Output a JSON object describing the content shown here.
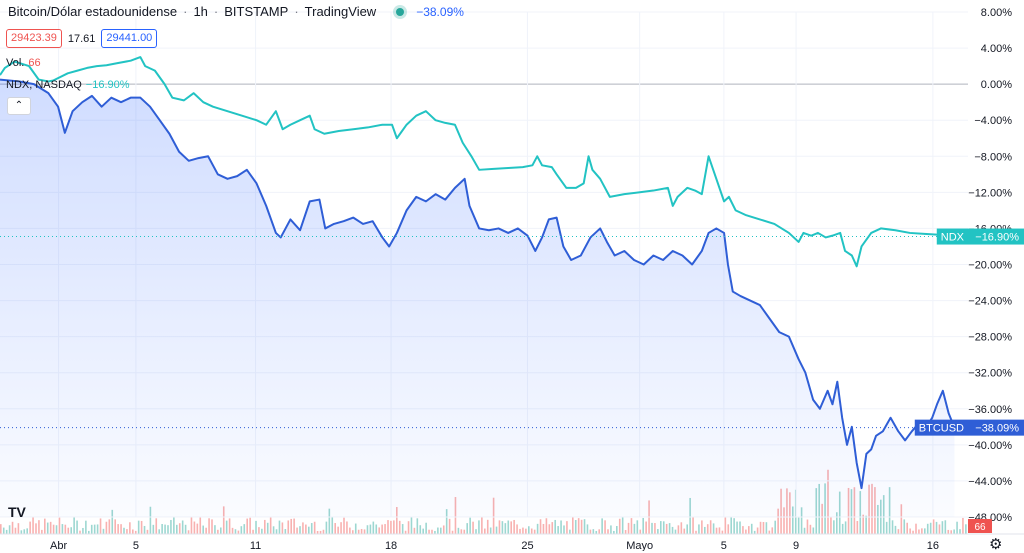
{
  "header": {
    "symbol": "Bitcoin/Dólar estadounidense",
    "interval": "1h",
    "exchange": "BITSTAMP",
    "source": "TradingView",
    "change": "−38.09%",
    "live_color": "#26a69a"
  },
  "quotes": {
    "sell": "29423.39",
    "spread": "17.61",
    "buy": "29441.00"
  },
  "volume": {
    "label": "Vol.",
    "value": "66"
  },
  "compare": {
    "label": "NDX, NASDAQ",
    "value": "−16.90%"
  },
  "controls": {
    "collapse_icon": "chevron-up-icon",
    "settings_icon": "gear-icon"
  },
  "chart_data": {
    "type": "line",
    "y_unit": "%",
    "ylim": [
      -48,
      8
    ],
    "yticks": [
      8,
      4,
      0,
      -4,
      -8,
      -12,
      -16,
      -20,
      -24,
      -28,
      -32,
      -36,
      -40,
      -44,
      -48
    ],
    "ytick_labels": [
      "8.00%",
      "4.00%",
      "0.00%",
      "−4.00%",
      "−8.00%",
      "−12.00%",
      "−16.00%",
      "−20.00%",
      "−24.00%",
      "−28.00%",
      "−32.00%",
      "−36.00%",
      "−40.00%",
      "−44.00%",
      "−48.00%"
    ],
    "x_domain": [
      0,
      1
    ],
    "xticks": [
      {
        "x": 0.0605,
        "label": "Abr"
      },
      {
        "x": 0.1404,
        "label": "5"
      },
      {
        "x": 0.264,
        "label": "11"
      },
      {
        "x": 0.404,
        "label": "18"
      },
      {
        "x": 0.5449,
        "label": "25"
      },
      {
        "x": 0.6608,
        "label": "Mayo"
      },
      {
        "x": 0.7478,
        "label": "5"
      },
      {
        "x": 0.8224,
        "label": "9"
      },
      {
        "x": 0.9637,
        "label": "16"
      }
    ],
    "series": [
      {
        "name": "BTCUSD",
        "color": "#2f5ed6",
        "label": "BTCUSD",
        "last_label": "−38.09%",
        "last_value": -38.09,
        "area": true,
        "points": [
          [
            0.0,
            0.5
          ],
          [
            0.02,
            0.3
          ],
          [
            0.035,
            0.0
          ],
          [
            0.05,
            -1.0
          ],
          [
            0.06,
            -2.5
          ],
          [
            0.067,
            -5.4
          ],
          [
            0.075,
            -3.0
          ],
          [
            0.085,
            -2.0
          ],
          [
            0.095,
            -1.3
          ],
          [
            0.105,
            -2.5
          ],
          [
            0.115,
            -1.5
          ],
          [
            0.125,
            -2.0
          ],
          [
            0.135,
            -1.5
          ],
          [
            0.145,
            -1.5
          ],
          [
            0.155,
            -2.5
          ],
          [
            0.165,
            -4.0
          ],
          [
            0.175,
            -5.5
          ],
          [
            0.185,
            -7.5
          ],
          [
            0.195,
            -8.5
          ],
          [
            0.205,
            -8.2
          ],
          [
            0.215,
            -8.0
          ],
          [
            0.225,
            -10.0
          ],
          [
            0.235,
            -10.5
          ],
          [
            0.245,
            -10.2
          ],
          [
            0.255,
            -9.5
          ],
          [
            0.265,
            -11.0
          ],
          [
            0.275,
            -13.5
          ],
          [
            0.285,
            -16.5
          ],
          [
            0.29,
            -17.0
          ],
          [
            0.3,
            -15.0
          ],
          [
            0.31,
            -16.2
          ],
          [
            0.32,
            -13.0
          ],
          [
            0.33,
            -12.8
          ],
          [
            0.336,
            -16.0
          ],
          [
            0.345,
            -15.5
          ],
          [
            0.355,
            -15.2
          ],
          [
            0.365,
            -14.8
          ],
          [
            0.375,
            -15.5
          ],
          [
            0.385,
            -15.2
          ],
          [
            0.395,
            -17.0
          ],
          [
            0.402,
            -18.0
          ],
          [
            0.41,
            -16.5
          ],
          [
            0.42,
            -14.0
          ],
          [
            0.43,
            -12.5
          ],
          [
            0.44,
            -13.0
          ],
          [
            0.45,
            -12.2
          ],
          [
            0.46,
            -12.8
          ],
          [
            0.47,
            -11.5
          ],
          [
            0.48,
            -10.5
          ],
          [
            0.485,
            -13.5
          ],
          [
            0.495,
            -16.0
          ],
          [
            0.505,
            -16.2
          ],
          [
            0.515,
            -16.0
          ],
          [
            0.525,
            -16.5
          ],
          [
            0.535,
            -16.0
          ],
          [
            0.545,
            -16.8
          ],
          [
            0.553,
            -18.5
          ],
          [
            0.56,
            -17.0
          ],
          [
            0.567,
            -15.0
          ],
          [
            0.575,
            -14.8
          ],
          [
            0.582,
            -18.0
          ],
          [
            0.59,
            -19.5
          ],
          [
            0.6,
            -19.0
          ],
          [
            0.61,
            -17.0
          ],
          [
            0.62,
            -16.0
          ],
          [
            0.627,
            -17.5
          ],
          [
            0.635,
            -19.0
          ],
          [
            0.645,
            -18.5
          ],
          [
            0.655,
            -19.5
          ],
          [
            0.665,
            -20.0
          ],
          [
            0.675,
            -19.0
          ],
          [
            0.685,
            -19.5
          ],
          [
            0.695,
            -18.5
          ],
          [
            0.705,
            -19.0
          ],
          [
            0.715,
            -20.0
          ],
          [
            0.725,
            -18.5
          ],
          [
            0.732,
            -16.5
          ],
          [
            0.74,
            -16.0
          ],
          [
            0.748,
            -16.5
          ],
          [
            0.752,
            -20.0
          ],
          [
            0.757,
            -23.0
          ],
          [
            0.765,
            -23.5
          ],
          [
            0.775,
            -24.0
          ],
          [
            0.785,
            -24.5
          ],
          [
            0.795,
            -26.0
          ],
          [
            0.805,
            -27.5
          ],
          [
            0.815,
            -28.0
          ],
          [
            0.825,
            -30.5
          ],
          [
            0.832,
            -32.0
          ],
          [
            0.84,
            -35.0
          ],
          [
            0.847,
            -36.0
          ],
          [
            0.855,
            -34.0
          ],
          [
            0.86,
            -35.5
          ],
          [
            0.865,
            -33.0
          ],
          [
            0.87,
            -37.0
          ],
          [
            0.875,
            -40.0
          ],
          [
            0.88,
            -38.0
          ],
          [
            0.885,
            -42.0
          ],
          [
            0.89,
            -44.8
          ],
          [
            0.895,
            -41.0
          ],
          [
            0.9,
            -40.5
          ],
          [
            0.905,
            -39.0
          ],
          [
            0.912,
            -38.5
          ],
          [
            0.92,
            -37.0
          ],
          [
            0.928,
            -38.5
          ],
          [
            0.935,
            -39.5
          ],
          [
            0.942,
            -38.5
          ],
          [
            0.95,
            -37.5
          ],
          [
            0.957,
            -38.0
          ],
          [
            0.963,
            -37.0
          ],
          [
            0.968,
            -35.5
          ],
          [
            0.974,
            -34.0
          ],
          [
            0.98,
            -36.5
          ],
          [
            0.986,
            -38.09
          ]
        ]
      },
      {
        "name": "NDX",
        "color": "#22c3c3",
        "label": "NDX",
        "last_label": "−16.90%",
        "last_value": -16.9,
        "area": false,
        "points": [
          [
            0.0,
            1.0
          ],
          [
            0.005,
            1.8
          ],
          [
            0.015,
            2.5
          ],
          [
            0.03,
            2.0
          ],
          [
            0.04,
            0.5
          ],
          [
            0.05,
            0.3
          ],
          [
            0.055,
            0.4
          ],
          [
            0.07,
            1.2
          ],
          [
            0.08,
            1.5
          ],
          [
            0.09,
            1.8
          ],
          [
            0.1,
            2.0
          ],
          [
            0.11,
            2.1
          ],
          [
            0.12,
            2.3
          ],
          [
            0.135,
            2.6
          ],
          [
            0.145,
            3.0
          ],
          [
            0.15,
            2.0
          ],
          [
            0.16,
            1.5
          ],
          [
            0.17,
            0.0
          ],
          [
            0.178,
            -1.5
          ],
          [
            0.19,
            -1.8
          ],
          [
            0.2,
            -1.0
          ],
          [
            0.21,
            -2.0
          ],
          [
            0.22,
            -2.5
          ],
          [
            0.235,
            -3.0
          ],
          [
            0.25,
            -3.5
          ],
          [
            0.265,
            -4.0
          ],
          [
            0.275,
            -4.5
          ],
          [
            0.285,
            -3.0
          ],
          [
            0.292,
            -5.0
          ],
          [
            0.3,
            -4.5
          ],
          [
            0.31,
            -4.0
          ],
          [
            0.32,
            -3.5
          ],
          [
            0.325,
            -5.0
          ],
          [
            0.335,
            -5.5
          ],
          [
            0.35,
            -5.2
          ],
          [
            0.365,
            -5.0
          ],
          [
            0.38,
            -4.8
          ],
          [
            0.395,
            -4.5
          ],
          [
            0.405,
            -4.5
          ],
          [
            0.41,
            -6.0
          ],
          [
            0.42,
            -4.5
          ],
          [
            0.43,
            -3.5
          ],
          [
            0.44,
            -3.0
          ],
          [
            0.45,
            -4.0
          ],
          [
            0.46,
            -4.3
          ],
          [
            0.47,
            -4.5
          ],
          [
            0.478,
            -6.5
          ],
          [
            0.487,
            -8.0
          ],
          [
            0.495,
            -9.5
          ],
          [
            0.51,
            -9.4
          ],
          [
            0.525,
            -9.3
          ],
          [
            0.54,
            -9.2
          ],
          [
            0.55,
            -9.0
          ],
          [
            0.555,
            -8.0
          ],
          [
            0.56,
            -9.0
          ],
          [
            0.57,
            -9.2
          ],
          [
            0.575,
            -10.0
          ],
          [
            0.585,
            -11.5
          ],
          [
            0.595,
            -11.5
          ],
          [
            0.603,
            -11.0
          ],
          [
            0.608,
            -8.0
          ],
          [
            0.612,
            -9.5
          ],
          [
            0.62,
            -10.5
          ],
          [
            0.63,
            -12.5
          ],
          [
            0.645,
            -12.2
          ],
          [
            0.66,
            -12.0
          ],
          [
            0.675,
            -11.8
          ],
          [
            0.69,
            -11.5
          ],
          [
            0.695,
            -13.5
          ],
          [
            0.7,
            -12.5
          ],
          [
            0.71,
            -11.5
          ],
          [
            0.718,
            -11.8
          ],
          [
            0.725,
            -12.2
          ],
          [
            0.732,
            -8.0
          ],
          [
            0.74,
            -10.5
          ],
          [
            0.748,
            -13.0
          ],
          [
            0.753,
            -12.5
          ],
          [
            0.76,
            -14.0
          ],
          [
            0.77,
            -14.5
          ],
          [
            0.785,
            -15.0
          ],
          [
            0.8,
            -15.5
          ],
          [
            0.815,
            -16.5
          ],
          [
            0.825,
            -17.5
          ],
          [
            0.83,
            -16.5
          ],
          [
            0.838,
            -16.8
          ],
          [
            0.845,
            -16.5
          ],
          [
            0.853,
            -17.0
          ],
          [
            0.86,
            -16.8
          ],
          [
            0.868,
            -16.5
          ],
          [
            0.873,
            -18.5
          ],
          [
            0.88,
            -19.0
          ],
          [
            0.885,
            -20.2
          ],
          [
            0.89,
            -18.0
          ],
          [
            0.9,
            -16.5
          ],
          [
            0.91,
            -16.0
          ],
          [
            0.925,
            -16.2
          ],
          [
            0.94,
            -16.5
          ],
          [
            0.955,
            -16.6
          ],
          [
            0.97,
            -16.7
          ],
          [
            0.986,
            -16.9
          ]
        ]
      }
    ],
    "volume": {
      "color_up": "#26a69a",
      "color_down": "#ef5350",
      "last_label": "66"
    }
  }
}
